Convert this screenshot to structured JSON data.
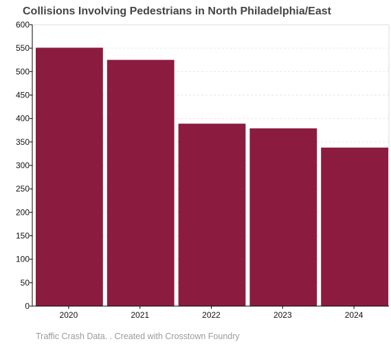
{
  "chart_data": {
    "type": "bar",
    "title": "Collisions Involving Pedestrians in North Philadelphia/East",
    "xlabel": "",
    "ylabel": "",
    "categories": [
      "2020",
      "2021",
      "2022",
      "2023",
      "2024"
    ],
    "values": [
      551,
      525,
      389,
      379,
      338
    ],
    "ylim": [
      0,
      600
    ],
    "yticks": [
      0,
      50,
      100,
      150,
      200,
      250,
      300,
      350,
      400,
      450,
      500,
      550,
      600
    ],
    "grid": "horizontal dotted",
    "legend": "none",
    "bar_color": "#8b1c40"
  },
  "caption": "Traffic Crash Data. . Created with Crosstown Foundry"
}
